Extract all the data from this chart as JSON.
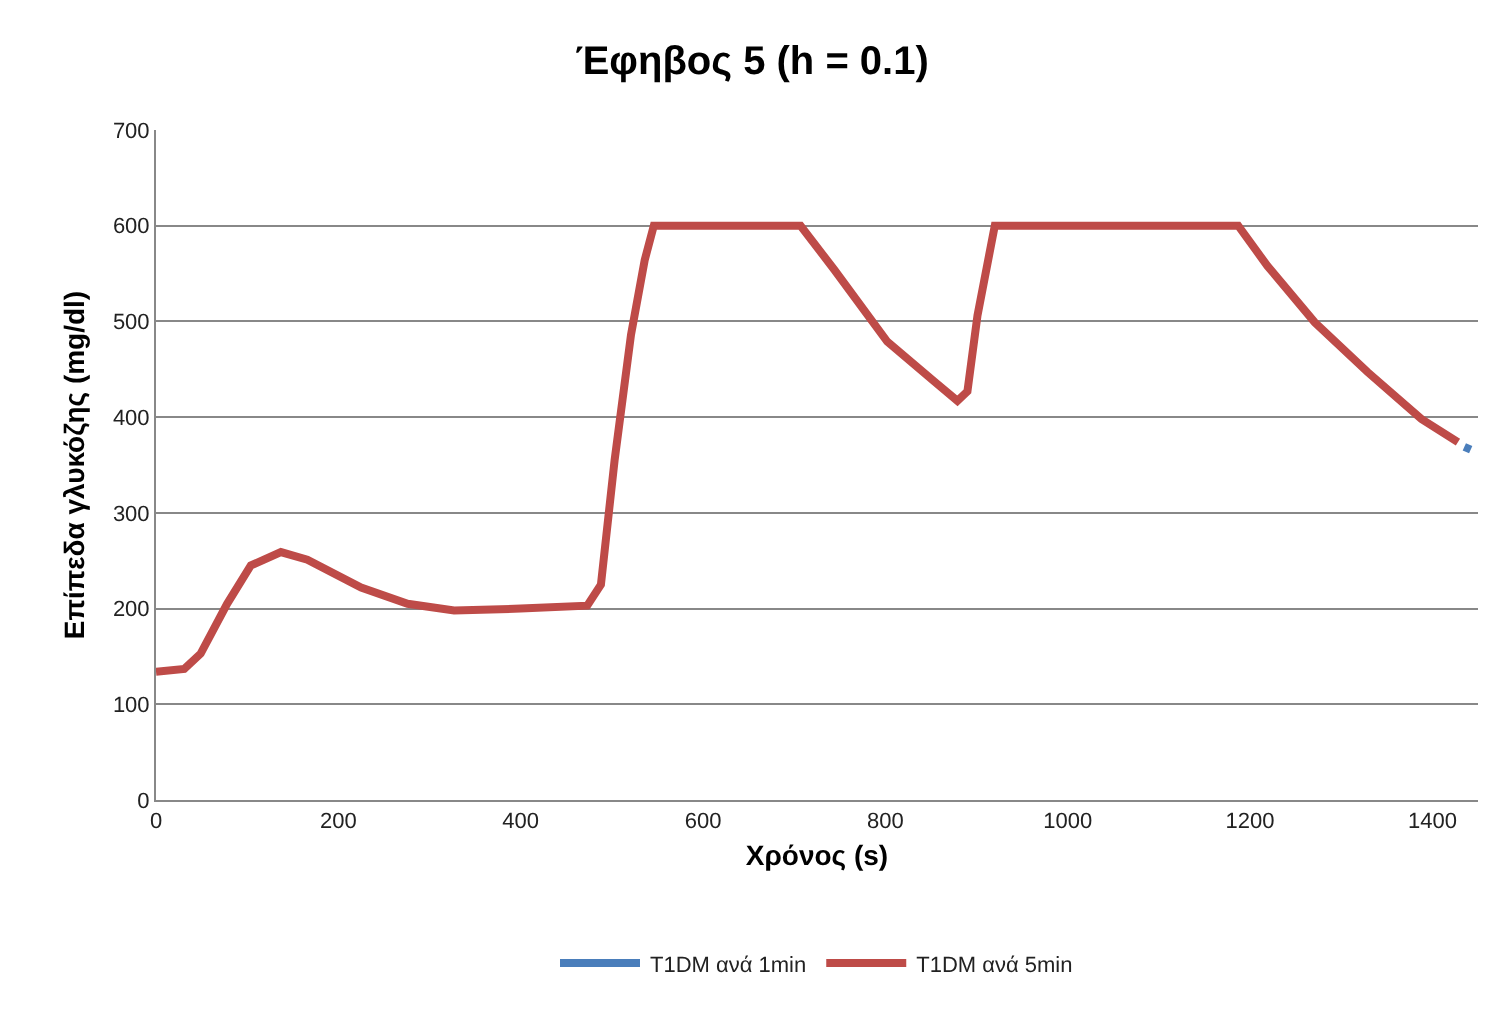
{
  "chart_data": {
    "type": "line",
    "title": "Έφηβος 5 (h = 0.1)",
    "xlabel": "Χρόνος (s)",
    "ylabel": "Επίπεδα γλυκόζης (mg/dl)",
    "x": [
      0,
      31,
      49,
      78,
      104,
      137,
      166,
      225,
      276,
      327,
      400,
      473,
      488,
      503,
      521,
      536,
      546,
      707,
      744,
      802,
      854,
      879,
      890,
      901,
      920,
      1187,
      1219,
      1271,
      1329,
      1388,
      1428
    ],
    "series": [
      {
        "name": "T1DM ανά 1min",
        "color": "#4a7ebb",
        "x": [
          1435,
          1442
        ],
        "values": [
          369,
          366
        ]
      },
      {
        "name": "T1DM ανά 5min",
        "color": "#be4b48",
        "values": [
          134,
          137,
          153,
          205,
          245,
          259,
          251,
          222,
          205,
          198,
          200,
          203,
          225,
          355,
          486,
          564,
          600,
          600,
          554,
          479,
          437,
          417,
          427,
          506,
          600,
          600,
          558,
          499,
          447,
          398,
          374
        ]
      }
    ],
    "xlim": [
      0,
      1450
    ],
    "xticks": [
      0,
      200,
      400,
      600,
      800,
      1000,
      1200,
      1400
    ],
    "ylim": [
      0,
      700
    ],
    "yticks": [
      0,
      100,
      200,
      300,
      400,
      500,
      600,
      700
    ],
    "grid": "y",
    "legend": "bottom",
    "marker": "none",
    "line_style": "solid"
  }
}
